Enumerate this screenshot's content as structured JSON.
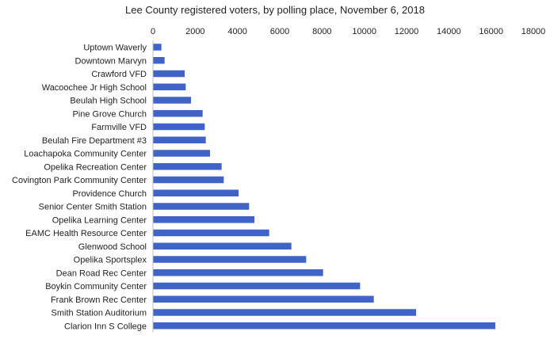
{
  "chart_data": {
    "type": "bar",
    "orientation": "horizontal",
    "title": "Lee County registered voters, by polling place, November 6, 2018",
    "xlabel": "",
    "ylabel": "",
    "xlim": [
      0,
      18000
    ],
    "xticks": [
      "0",
      "2000",
      "4000",
      "6000",
      "8000",
      "10000",
      "12000",
      "14000",
      "16000",
      "18000"
    ],
    "x_axis_position": "top",
    "grid": false,
    "legend": "none",
    "bar_color": "#3F63C7",
    "categories": [
      "Uptown Waverly",
      "Downtown Marvyn",
      "Crawford VFD",
      "Wacoochee Jr High School",
      "Beulah High School",
      "Pine Grove Church",
      "Farmville VFD",
      "Beulah Fire Department #3",
      "Loachapoka Community Center",
      "Opelika Recreation Center",
      "Covington Park Community Center",
      "Providence Church",
      "Senior Center Smith Station",
      "Opelika Learning Center",
      "EAMC Health Resource Center",
      "Glenwood School",
      "Opelika Sportsplex",
      "Dean Road Rec Center",
      "Boykin Community Center",
      "Frank Brown Rec Center",
      "Smith Station Auditorium",
      "Clarion Inn S College"
    ],
    "values": [
      400,
      550,
      1500,
      1550,
      1800,
      2350,
      2450,
      2500,
      2700,
      3250,
      3350,
      4050,
      4550,
      4800,
      5500,
      6550,
      7250,
      8050,
      9800,
      10450,
      12450,
      16200
    ]
  }
}
